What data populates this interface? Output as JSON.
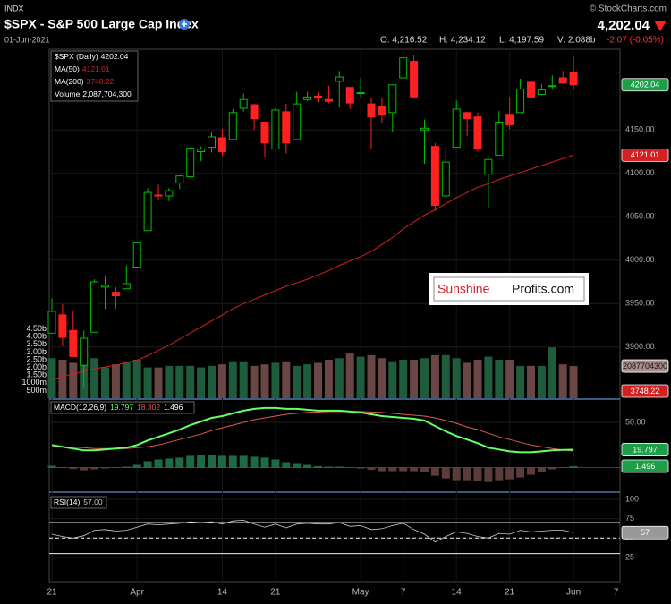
{
  "header": {
    "exchange": "INDX",
    "title": "$SPX - S&P 500 Large Cap Index",
    "date": "01-Jun-2021",
    "copyright": "© StockCharts.com",
    "last": "4,202.04",
    "open": "O: 4,216.52",
    "high": "H: 4,234.12",
    "low": "L: 4,197.59",
    "volume": "V: 2.088b",
    "change": "-2.07 (-0.05%)"
  },
  "watermark": [
    "Sunshine",
    "Profits.com"
  ],
  "chart_data": [
    {
      "type": "candlestick",
      "categories": [
        "21",
        null,
        null,
        null,
        null,
        null,
        null,
        null,
        "Apr",
        null,
        null,
        null,
        null,
        null,
        null,
        null,
        "14",
        null,
        null,
        null,
        null,
        "21",
        null,
        null,
        null,
        null,
        null,
        null,
        null,
        "May",
        null,
        null,
        null,
        "7",
        null,
        null,
        null,
        null,
        "14",
        null,
        null,
        null,
        null,
        "21",
        null,
        null,
        null,
        null,
        null,
        "Jun",
        null,
        null,
        null,
        "7"
      ],
      "open": [
        3916,
        3937,
        3919,
        3879,
        3917,
        3969,
        3963,
        3967,
        3992,
        4034,
        4075,
        4074,
        4089,
        4096,
        4125,
        4130,
        4141,
        4139,
        4175,
        4179,
        4159,
        4128,
        4171,
        4139,
        4185,
        4189,
        4185,
        4206,
        4199,
        4192,
        4180,
        4177,
        4170,
        4210,
        4229,
        4150,
        4131,
        4074,
        4130,
        4170,
        4165,
        4099,
        4121,
        4168,
        4170,
        4205,
        4191,
        4201,
        4210,
        4216.52,
        null,
        null,
        null,
        null
      ],
      "high": [
        3956,
        3949,
        3942,
        3919,
        3978,
        3981,
        3969,
        3994,
        4020,
        4083,
        4087,
        4083,
        4098,
        4130,
        4131,
        4148,
        4151,
        4174,
        4192,
        4180,
        4160,
        4175,
        4180,
        4194,
        4194,
        4193,
        4201,
        4218,
        4199,
        4210,
        4187,
        4187,
        4202,
        4238,
        4236,
        4162,
        4135,
        4131,
        4184,
        4171,
        4170,
        4117,
        4172,
        4188,
        4209,
        4213,
        4203,
        4213,
        4218,
        4234.12,
        null,
        null,
        null,
        null
      ],
      "low": [
        3916,
        3901,
        3889,
        3853,
        3917,
        3944,
        3944,
        3967,
        3992,
        4034,
        4069,
        4068,
        4082,
        4095,
        4114,
        4124,
        4120,
        4139,
        4171,
        4150,
        4118,
        4127,
        4123,
        4138,
        4183,
        4182,
        4181,
        4176,
        4174,
        4188,
        4128,
        4158,
        4148,
        4210,
        4188,
        4111,
        4057,
        4069,
        4130,
        4143,
        4125,
        4061,
        4121,
        4151,
        4170,
        4182,
        4190,
        4197,
        4203,
        4197.59,
        null,
        null,
        null,
        null
      ],
      "close": [
        3941,
        3911,
        3889,
        3910,
        3975,
        3971,
        3959,
        3973,
        4020,
        4078,
        4074,
        4080,
        4097,
        4129,
        4128,
        4142,
        4125,
        4170,
        4185,
        4163,
        4135,
        4173,
        4135,
        4180,
        4188,
        4187,
        4183,
        4211,
        4181,
        4193,
        4165,
        4168,
        4202,
        4233,
        4188,
        4152,
        4063,
        4113,
        4174,
        4163,
        4128,
        4116,
        4159,
        4156,
        4197,
        4188,
        4196,
        4201,
        4204,
        4202.04,
        null,
        null,
        null,
        null
      ],
      "up_color": "#00c000",
      "down_color": "#ff2020",
      "ylim": [
        3841,
        4243
      ],
      "yticks": [
        {
          "value": 4150,
          "label": "4150.00"
        },
        {
          "value": 4100,
          "label": "4100.00"
        },
        {
          "value": 4050,
          "label": "4050.00"
        },
        {
          "value": 4000,
          "label": "4000.00"
        },
        {
          "value": 3950,
          "label": "3950.00"
        },
        {
          "value": 3900,
          "label": "3900.00"
        }
      ],
      "grid": true,
      "legend": [
        {
          "name": "$SPX (Daily)",
          "value_label": "4202.04"
        },
        {
          "name": "MA(50)",
          "value_label": "4121.01"
        },
        {
          "name": "MA(200)",
          "value_label": "3748.22"
        },
        {
          "name": "Volume",
          "value_label": "2,087,704,300"
        }
      ],
      "series": [
        {
          "name": "MA(50)",
          "color": "#d42020",
          "values": [
            3862,
            3866,
            3869,
            3872,
            3875,
            3877,
            3879,
            3882,
            3885,
            3890,
            3896,
            3902,
            3909,
            3916,
            3923,
            3930,
            3937,
            3944,
            3950,
            3955,
            3960,
            3965,
            3970,
            3974,
            3978,
            3983,
            3988,
            3994,
            3999,
            4004,
            4010,
            4018,
            4026,
            4036,
            4044,
            4052,
            4058,
            4065,
            4072,
            4078,
            4084,
            4088,
            4093,
            4097,
            4101,
            4105,
            4109,
            4113,
            4117,
            4121.01,
            null,
            null,
            null,
            null
          ]
        }
      ],
      "tags": [
        {
          "value": 4202.04,
          "label": "4202.04",
          "color": "#1e9e48"
        },
        {
          "value": 4121.01,
          "label": "4121.01",
          "color": "#d42020"
        },
        {
          "value": 3748.22,
          "label": "3748.22",
          "color": "#d42020"
        }
      ],
      "volume": {
        "values": [
          2600000000,
          2500000000,
          2300000000,
          2900000000,
          2600000000,
          2000000000,
          2200000000,
          2400000000,
          2500000000,
          2000000000,
          2000000000,
          2100000000,
          2100000000,
          2100000000,
          2000000000,
          2100000000,
          2200000000,
          2400000000,
          2400000000,
          2100000000,
          2200000000,
          2300000000,
          2400000000,
          2100000000,
          2200000000,
          2300000000,
          2500000000,
          2600000000,
          2900000000,
          2700000000,
          2800000000,
          2600000000,
          2400000000,
          2500000000,
          2500000000,
          2600000000,
          2800000000,
          2800000000,
          2600000000,
          2300000000,
          2500000000,
          2700000000,
          2500000000,
          2500000000,
          2100000000,
          2100000000,
          2100000000,
          3300000000,
          2200000000,
          2087704300,
          null,
          null,
          null,
          null
        ],
        "ylim": [
          0,
          22670000000
        ],
        "yticks": [
          {
            "value": 4500000000,
            "label": "4.50b"
          },
          {
            "value": 4000000000,
            "label": "4.00b"
          },
          {
            "value": 3500000000,
            "label": "3.50b"
          },
          {
            "value": 3000000000,
            "label": "3.00b"
          },
          {
            "value": 2500000000,
            "label": "2.50b"
          },
          {
            "value": 2000000000,
            "label": "2.00b"
          },
          {
            "value": 1500000000,
            "label": "1.50b"
          },
          {
            "value": 1000000000,
            "label": "1000m"
          },
          {
            "value": 500000000,
            "label": "500m"
          }
        ],
        "up_color": "#1f5c3c",
        "down_color": "#6a4644",
        "tag": {
          "value": 2087704300,
          "label": "2087704300"
        }
      }
    },
    {
      "type": "macd",
      "title": "MACD(12,26,9)",
      "ylim": [
        -27.2,
        74.8
      ],
      "yticks": [
        {
          "value": 50,
          "label": "50.00"
        }
      ],
      "series": [
        {
          "color": "#66ff66",
          "value_label": "19.797",
          "values": [
            25,
            23,
            21,
            19,
            19,
            20,
            21,
            22,
            25,
            30,
            34,
            38,
            42,
            47,
            51,
            55,
            57,
            60,
            63,
            65,
            66,
            66,
            65,
            65,
            64,
            63,
            63,
            63,
            62,
            61,
            59,
            57,
            56,
            55,
            54,
            52,
            46,
            40,
            35,
            31,
            27,
            22,
            20,
            18,
            17,
            17,
            18,
            19,
            19.5,
            19.797,
            null,
            null,
            null,
            null
          ]
        },
        {
          "color": "#e05a50",
          "value_label": "18.302",
          "values": [
            23,
            23,
            22.5,
            22,
            21,
            21,
            21,
            21,
            22,
            23,
            25,
            28,
            31,
            34,
            37,
            41,
            44,
            47,
            50,
            53,
            55,
            57,
            59,
            60,
            61,
            61.5,
            62,
            62,
            62,
            62,
            61.5,
            61,
            60,
            59,
            58,
            57,
            55,
            52,
            49,
            45,
            42,
            38,
            34,
            31,
            28,
            25,
            23,
            21,
            19.5,
            18.302,
            null,
            null,
            null,
            null
          ]
        },
        {
          "color": "#1f6a46",
          "neg_color": "#5c3c3a",
          "value_label": "1.496",
          "values": [
            2,
            0,
            -1.5,
            -3,
            -2,
            -1,
            0,
            1,
            3,
            7,
            9,
            10,
            11,
            13,
            14,
            14,
            13,
            13,
            13,
            12,
            11,
            9,
            6,
            5,
            3,
            1.5,
            1,
            1,
            0,
            -1,
            -2.5,
            -4,
            -4,
            -4,
            -4,
            -5,
            -9,
            -12,
            -14,
            -14,
            -15,
            -16,
            -14,
            -13,
            -11,
            -8,
            -5,
            -2,
            0,
            1.496,
            null,
            null,
            null,
            null
          ]
        }
      ]
    },
    {
      "type": "rsi",
      "title": "RSI(14)",
      "value_label": "57.00",
      "color": "#cccccc",
      "values": [
        55,
        52,
        50,
        53,
        60,
        61,
        59,
        60,
        64,
        68,
        67,
        68,
        69,
        71,
        70,
        71,
        68,
        72,
        73,
        68,
        64,
        68,
        63,
        68,
        69,
        68,
        68,
        70,
        65,
        66,
        61,
        62,
        66,
        69,
        61,
        55,
        45,
        52,
        58,
        56,
        52,
        50,
        56,
        55,
        60,
        58,
        59,
        60,
        60,
        57,
        null,
        null,
        null,
        null
      ],
      "ylim": [
        -6.2,
        106.9
      ],
      "yticks": [
        100,
        75,
        50,
        25
      ],
      "reference_lines": [
        70,
        30
      ],
      "midline": 50,
      "tag": {
        "value": 57,
        "label": "57"
      }
    }
  ]
}
